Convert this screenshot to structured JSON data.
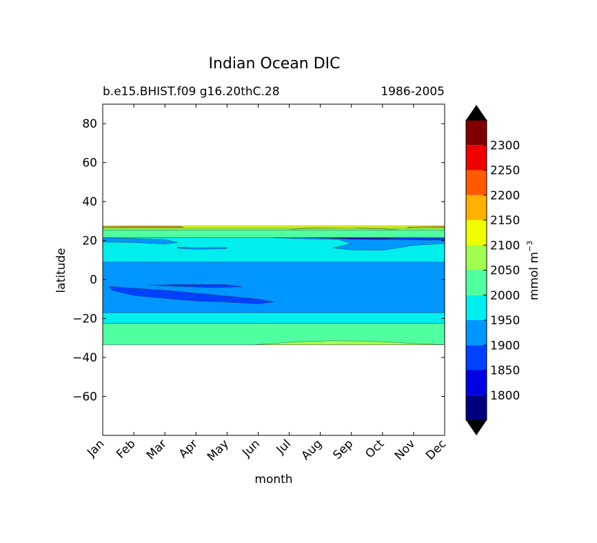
{
  "chart_data": {
    "type": "heatmap",
    "title": "Indian Ocean DIC",
    "subtitle_left": "b.e15.BHIST.f09 g16.20thC.28",
    "subtitle_right": "1986-2005",
    "xlabel": "month",
    "ylabel": "latitude",
    "x_ticks": [
      "Jan",
      "Feb",
      "Mar",
      "Apr",
      "May",
      "Jun",
      "Jul",
      "Aug",
      "Sep",
      "Oct",
      "Nov",
      "Dec"
    ],
    "xlim": [
      1,
      12
    ],
    "ylim": [
      -80,
      90
    ],
    "y_ticks": [
      80,
      60,
      40,
      20,
      0,
      -20,
      -40,
      -60
    ],
    "y_tick_labels": [
      "80",
      "60",
      "40",
      "20",
      "0",
      "−20",
      "−40",
      "−60"
    ],
    "colorbar": {
      "label": "mmol m",
      "label_exponent": "−3",
      "levels": [
        1750,
        1800,
        1850,
        1900,
        1950,
        2000,
        2050,
        2100,
        2150,
        2200,
        2250,
        2300,
        2350
      ],
      "tick_labels": [
        "1800",
        "1850",
        "1900",
        "1950",
        "2000",
        "2050",
        "2100",
        "2150",
        "2200",
        "2250",
        "2300"
      ],
      "colors": [
        "#00007f",
        "#0000e0",
        "#0040ff",
        "#0096ff",
        "#00eeee",
        "#50ffa0",
        "#a0ff50",
        "#eeff00",
        "#ffb000",
        "#ff5a00",
        "#ee0000",
        "#7f0000"
      ],
      "extend_low_color": "#000000",
      "extend_high_color": "#000000"
    },
    "bands": [
      {
        "name": "south-ocean-band",
        "lat_min": -33.5,
        "lat_max": -22.5,
        "value_range": "2000-2050"
      },
      {
        "name": "south-teal-band",
        "lat_min": -22.5,
        "lat_max": -17,
        "value_range": "1950-2000"
      },
      {
        "name": "central-blue-band",
        "lat_min": -17,
        "lat_max": 9,
        "value_range": "1900-1950"
      },
      {
        "name": "north-teal-band",
        "lat_min": 9,
        "lat_max": 21.5,
        "value_range": "1950-2000"
      },
      {
        "name": "north-green-band",
        "lat_min": 21.5,
        "lat_max": 25.5,
        "value_range": "2000-2050"
      },
      {
        "name": "north-lime-band",
        "lat_min": 25.5,
        "lat_max": 26.5,
        "value_range": "2050-2100"
      },
      {
        "name": "north-yellow-band",
        "lat_min": 26.5,
        "lat_max": 27.5,
        "value_range": "2100-2150"
      }
    ]
  }
}
